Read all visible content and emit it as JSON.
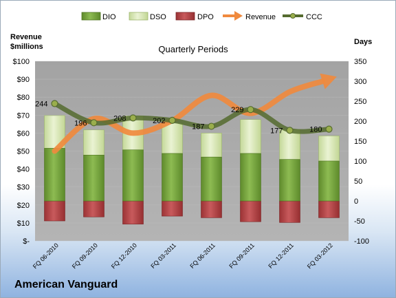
{
  "chart_data": {
    "type": "bar+line",
    "title": "Quarterly Periods",
    "company": "American Vanguard",
    "left_axis": {
      "label_lines": [
        "Revenue",
        "$millions"
      ],
      "ticks": [
        "$-",
        "$10",
        "$20",
        "$30",
        "$40",
        "$50",
        "$60",
        "$70",
        "$80",
        "$90",
        "$100"
      ],
      "range": [
        0,
        100
      ]
    },
    "right_axis": {
      "label": "Days",
      "ticks": [
        "-100",
        "-50",
        "0",
        "50",
        "100",
        "150",
        "200",
        "250",
        "300",
        "350"
      ],
      "range": [
        -100,
        350
      ]
    },
    "categories": [
      "FQ 06-2010",
      "FQ 09-2010",
      "FQ 12-2010",
      "FQ 03-2011",
      "FQ 06-2011",
      "FQ 09-2011",
      "FQ 12-2011",
      "FQ 03-2012"
    ],
    "legend": [
      "DIO",
      "DSO",
      "DPO",
      "Revenue",
      "CCC"
    ],
    "series": [
      {
        "name": "DIO",
        "axis": "right",
        "values": [
          132,
          115,
          128,
          119,
          110,
          119,
          104,
          100
        ]
      },
      {
        "name": "DSO",
        "axis": "right",
        "values": [
          82,
          63,
          85,
          76,
          60,
          85,
          75,
          63
        ]
      },
      {
        "name": "DPO",
        "axis": "right",
        "values": [
          -50,
          -40,
          -58,
          -38,
          -42,
          -52,
          -54,
          -42
        ]
      },
      {
        "name": "Revenue",
        "axis": "left",
        "values": [
          50,
          68,
          60,
          67,
          81,
          71,
          83,
          90
        ]
      },
      {
        "name": "CCC",
        "axis": "right",
        "values": [
          244,
          196,
          208,
          202,
          187,
          229,
          177,
          180
        ]
      }
    ],
    "ccc_labels": [
      "244",
      "196",
      "208",
      "202",
      "187",
      "229",
      "177",
      "180"
    ],
    "colors": {
      "dio": "#77a340",
      "dio_dark": "#4f7422",
      "dso": "#d7e6b1",
      "dso_dark": "#9cb56b",
      "dpo": "#b84a4c",
      "dpo_dark": "#7a2527",
      "revenue": "#f08a3e",
      "ccc": "#556b2f",
      "ccc_marker": "#9aae4c",
      "plot_bg": "#a6a6a6"
    }
  }
}
